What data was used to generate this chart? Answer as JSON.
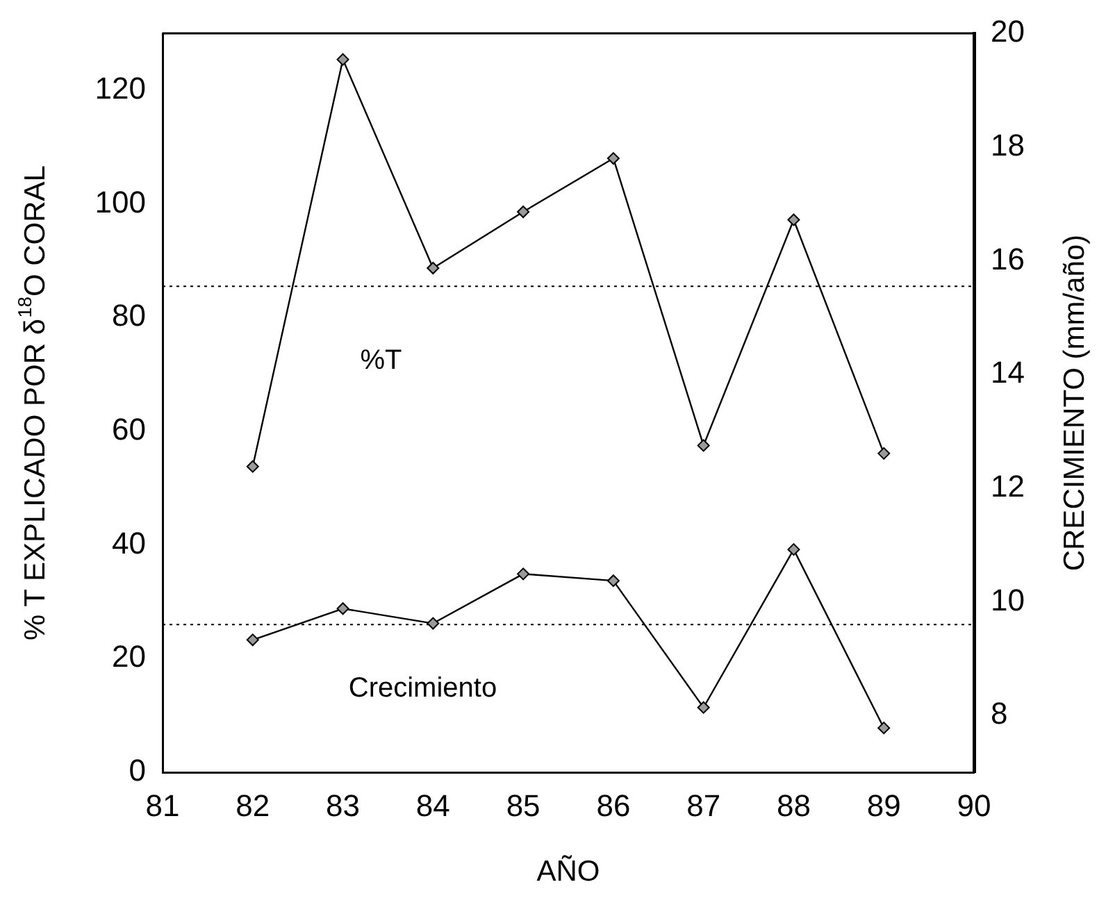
{
  "chart_data": {
    "type": "line",
    "xlabel": "AÑO",
    "ylabel": "% T EXPLICADO POR δ$^{18}$O CORAL",
    "y2label": "CRECIMIENTO (mm/año)",
    "x": [
      82,
      83,
      84,
      85,
      86,
      87,
      88,
      89
    ],
    "series": [
      {
        "name": "%T",
        "color": "#000000",
        "values": [
          53.8,
          125.4,
          88.7,
          98.6,
          108,
          57.5,
          97.2,
          56.1
        ]
      },
      {
        "name": "Crecimiento",
        "color": "#000000",
        "axis": "y2",
        "values": [
          9.33,
          9.88,
          9.62,
          10.49,
          10.37,
          8.14,
          10.92,
          7.78
        ]
      }
    ],
    "xlim": [
      81,
      90
    ],
    "xticks": [
      81,
      82,
      83,
      84,
      85,
      86,
      87,
      88,
      89,
      90
    ],
    "ylim": [
      0,
      130
    ],
    "yticks": [
      0,
      20,
      40,
      60,
      80,
      100,
      120
    ],
    "y2lim": [
      7,
      20
    ],
    "y2ticks": [
      8,
      10,
      12,
      14,
      16,
      18,
      20
    ],
    "ref_lines": [
      {
        "axis": "y",
        "value": 85.5,
        "line_style": "dotted"
      },
      {
        "axis": "y2",
        "value": 9.6,
        "line_style": "dotted"
      }
    ],
    "marker": "diamond",
    "line_style": "solid",
    "grid": false,
    "legend": false
  }
}
